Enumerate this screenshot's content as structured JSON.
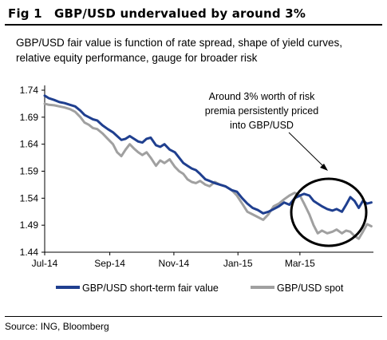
{
  "figure": {
    "label": "Fig 1",
    "title": "GBP/USD undervalued by around 3%",
    "subtitle": "GBP/USD fair value is function of rate spread, shape of yield curves, relative equity performance, gauge for broader risk",
    "source": "Source: ING, Bloomberg"
  },
  "colors": {
    "fair_value": "#1f3f8f",
    "spot": "#a0a0a0",
    "axis": "#000000",
    "highlight_circle": "#000000"
  },
  "chart_data": {
    "type": "line",
    "title": "",
    "xlabel": "",
    "ylabel": "",
    "ylim": [
      1.44,
      1.74
    ],
    "xlim": [
      "2014-07-01",
      "2015-05-10"
    ],
    "y_ticks": [
      1.44,
      1.49,
      1.54,
      1.59,
      1.64,
      1.69,
      1.74
    ],
    "y_tick_labels": [
      "1.44",
      "1.49",
      "1.54",
      "1.59",
      "1.64",
      "1.69",
      "1.74"
    ],
    "x_ticks": [
      "2014-07-01",
      "2014-09-01",
      "2014-11-01",
      "2015-01-01",
      "2015-03-01"
    ],
    "x_tick_labels": [
      "Jul-14",
      "Sep-14",
      "Nov-14",
      "Jan-15",
      "Mar-15"
    ],
    "grid": false,
    "legend_position": "bottom",
    "annotation": {
      "lines": [
        "Around 3% worth of risk",
        "premia persistently priced",
        "into GBP/USD"
      ]
    },
    "series": [
      {
        "name": "GBP/USD short-term fair value",
        "color": "#1f3f8f",
        "points": [
          [
            "2014-07-01",
            1.73
          ],
          [
            "2014-07-05",
            1.725
          ],
          [
            "2014-07-10",
            1.722
          ],
          [
            "2014-07-15",
            1.718
          ],
          [
            "2014-07-20",
            1.716
          ],
          [
            "2014-07-25",
            1.713
          ],
          [
            "2014-07-30",
            1.71
          ],
          [
            "2014-08-04",
            1.702
          ],
          [
            "2014-08-08",
            1.694
          ],
          [
            "2014-08-12",
            1.69
          ],
          [
            "2014-08-16",
            1.686
          ],
          [
            "2014-08-20",
            1.684
          ],
          [
            "2014-08-25",
            1.675
          ],
          [
            "2014-08-30",
            1.668
          ],
          [
            "2014-09-04",
            1.662
          ],
          [
            "2014-09-08",
            1.655
          ],
          [
            "2014-09-12",
            1.648
          ],
          [
            "2014-09-16",
            1.65
          ],
          [
            "2014-09-20",
            1.655
          ],
          [
            "2014-09-24",
            1.65
          ],
          [
            "2014-09-28",
            1.645
          ],
          [
            "2014-10-02",
            1.643
          ],
          [
            "2014-10-06",
            1.65
          ],
          [
            "2014-10-10",
            1.652
          ],
          [
            "2014-10-15",
            1.638
          ],
          [
            "2014-10-19",
            1.635
          ],
          [
            "2014-10-23",
            1.64
          ],
          [
            "2014-10-28",
            1.63
          ],
          [
            "2014-11-02",
            1.625
          ],
          [
            "2014-11-06",
            1.615
          ],
          [
            "2014-11-10",
            1.605
          ],
          [
            "2014-11-14",
            1.6
          ],
          [
            "2014-11-18",
            1.595
          ],
          [
            "2014-11-22",
            1.592
          ],
          [
            "2014-11-26",
            1.585
          ],
          [
            "2014-12-01",
            1.575
          ],
          [
            "2014-12-05",
            1.572
          ],
          [
            "2014-12-10",
            1.568
          ],
          [
            "2014-12-15",
            1.565
          ],
          [
            "2014-12-20",
            1.562
          ],
          [
            "2014-12-26",
            1.555
          ],
          [
            "2014-12-31",
            1.552
          ],
          [
            "2015-01-05",
            1.54
          ],
          [
            "2015-01-10",
            1.53
          ],
          [
            "2015-01-15",
            1.522
          ],
          [
            "2015-01-20",
            1.518
          ],
          [
            "2015-01-25",
            1.512
          ],
          [
            "2015-01-30",
            1.515
          ],
          [
            "2015-02-04",
            1.52
          ],
          [
            "2015-02-09",
            1.525
          ],
          [
            "2015-02-14",
            1.532
          ],
          [
            "2015-02-19",
            1.528
          ],
          [
            "2015-02-24",
            1.54
          ],
          [
            "2015-03-01",
            1.545
          ],
          [
            "2015-03-05",
            1.548
          ],
          [
            "2015-03-10",
            1.545
          ],
          [
            "2015-03-14",
            1.535
          ],
          [
            "2015-03-18",
            1.53
          ],
          [
            "2015-03-22",
            1.525
          ],
          [
            "2015-03-27",
            1.52
          ],
          [
            "2015-04-01",
            1.517
          ],
          [
            "2015-04-05",
            1.52
          ],
          [
            "2015-04-10",
            1.515
          ],
          [
            "2015-04-14",
            1.528
          ],
          [
            "2015-04-18",
            1.542
          ],
          [
            "2015-04-22",
            1.535
          ],
          [
            "2015-04-26",
            1.522
          ],
          [
            "2015-04-30",
            1.535
          ],
          [
            "2015-05-04",
            1.53
          ],
          [
            "2015-05-08",
            1.532
          ]
        ]
      },
      {
        "name": "GBP/USD spot",
        "color": "#a0a0a0",
        "points": [
          [
            "2014-07-01",
            1.715
          ],
          [
            "2014-07-05",
            1.713
          ],
          [
            "2014-07-10",
            1.712
          ],
          [
            "2014-07-15",
            1.71
          ],
          [
            "2014-07-20",
            1.708
          ],
          [
            "2014-07-25",
            1.705
          ],
          [
            "2014-07-30",
            1.7
          ],
          [
            "2014-08-04",
            1.69
          ],
          [
            "2014-08-08",
            1.68
          ],
          [
            "2014-08-12",
            1.676
          ],
          [
            "2014-08-16",
            1.67
          ],
          [
            "2014-08-20",
            1.668
          ],
          [
            "2014-08-25",
            1.66
          ],
          [
            "2014-08-30",
            1.65
          ],
          [
            "2014-09-04",
            1.64
          ],
          [
            "2014-09-08",
            1.625
          ],
          [
            "2014-09-12",
            1.618
          ],
          [
            "2014-09-16",
            1.63
          ],
          [
            "2014-09-20",
            1.64
          ],
          [
            "2014-09-24",
            1.632
          ],
          [
            "2014-09-28",
            1.625
          ],
          [
            "2014-10-02",
            1.62
          ],
          [
            "2014-10-06",
            1.625
          ],
          [
            "2014-10-10",
            1.615
          ],
          [
            "2014-10-15",
            1.6
          ],
          [
            "2014-10-19",
            1.61
          ],
          [
            "2014-10-23",
            1.605
          ],
          [
            "2014-10-28",
            1.612
          ],
          [
            "2014-11-02",
            1.598
          ],
          [
            "2014-11-06",
            1.59
          ],
          [
            "2014-11-10",
            1.585
          ],
          [
            "2014-11-14",
            1.575
          ],
          [
            "2014-11-18",
            1.57
          ],
          [
            "2014-11-22",
            1.568
          ],
          [
            "2014-11-26",
            1.572
          ],
          [
            "2014-12-01",
            1.565
          ],
          [
            "2014-12-05",
            1.562
          ],
          [
            "2014-12-10",
            1.57
          ],
          [
            "2014-12-15",
            1.565
          ],
          [
            "2014-12-20",
            1.562
          ],
          [
            "2014-12-26",
            1.555
          ],
          [
            "2014-12-31",
            1.545
          ],
          [
            "2015-01-05",
            1.53
          ],
          [
            "2015-01-10",
            1.515
          ],
          [
            "2015-01-15",
            1.51
          ],
          [
            "2015-01-20",
            1.505
          ],
          [
            "2015-01-25",
            1.5
          ],
          [
            "2015-01-30",
            1.51
          ],
          [
            "2015-02-04",
            1.525
          ],
          [
            "2015-02-09",
            1.53
          ],
          [
            "2015-02-14",
            1.538
          ],
          [
            "2015-02-19",
            1.545
          ],
          [
            "2015-02-24",
            1.55
          ],
          [
            "2015-03-01",
            1.545
          ],
          [
            "2015-03-05",
            1.53
          ],
          [
            "2015-03-10",
            1.51
          ],
          [
            "2015-03-14",
            1.49
          ],
          [
            "2015-03-18",
            1.475
          ],
          [
            "2015-03-22",
            1.48
          ],
          [
            "2015-03-27",
            1.475
          ],
          [
            "2015-04-01",
            1.478
          ],
          [
            "2015-04-05",
            1.482
          ],
          [
            "2015-04-10",
            1.475
          ],
          [
            "2015-04-14",
            1.48
          ],
          [
            "2015-04-18",
            1.478
          ],
          [
            "2015-04-22",
            1.47
          ],
          [
            "2015-04-26",
            1.465
          ],
          [
            "2015-04-30",
            1.478
          ],
          [
            "2015-05-04",
            1.492
          ],
          [
            "2015-05-08",
            1.488
          ]
        ]
      }
    ]
  }
}
